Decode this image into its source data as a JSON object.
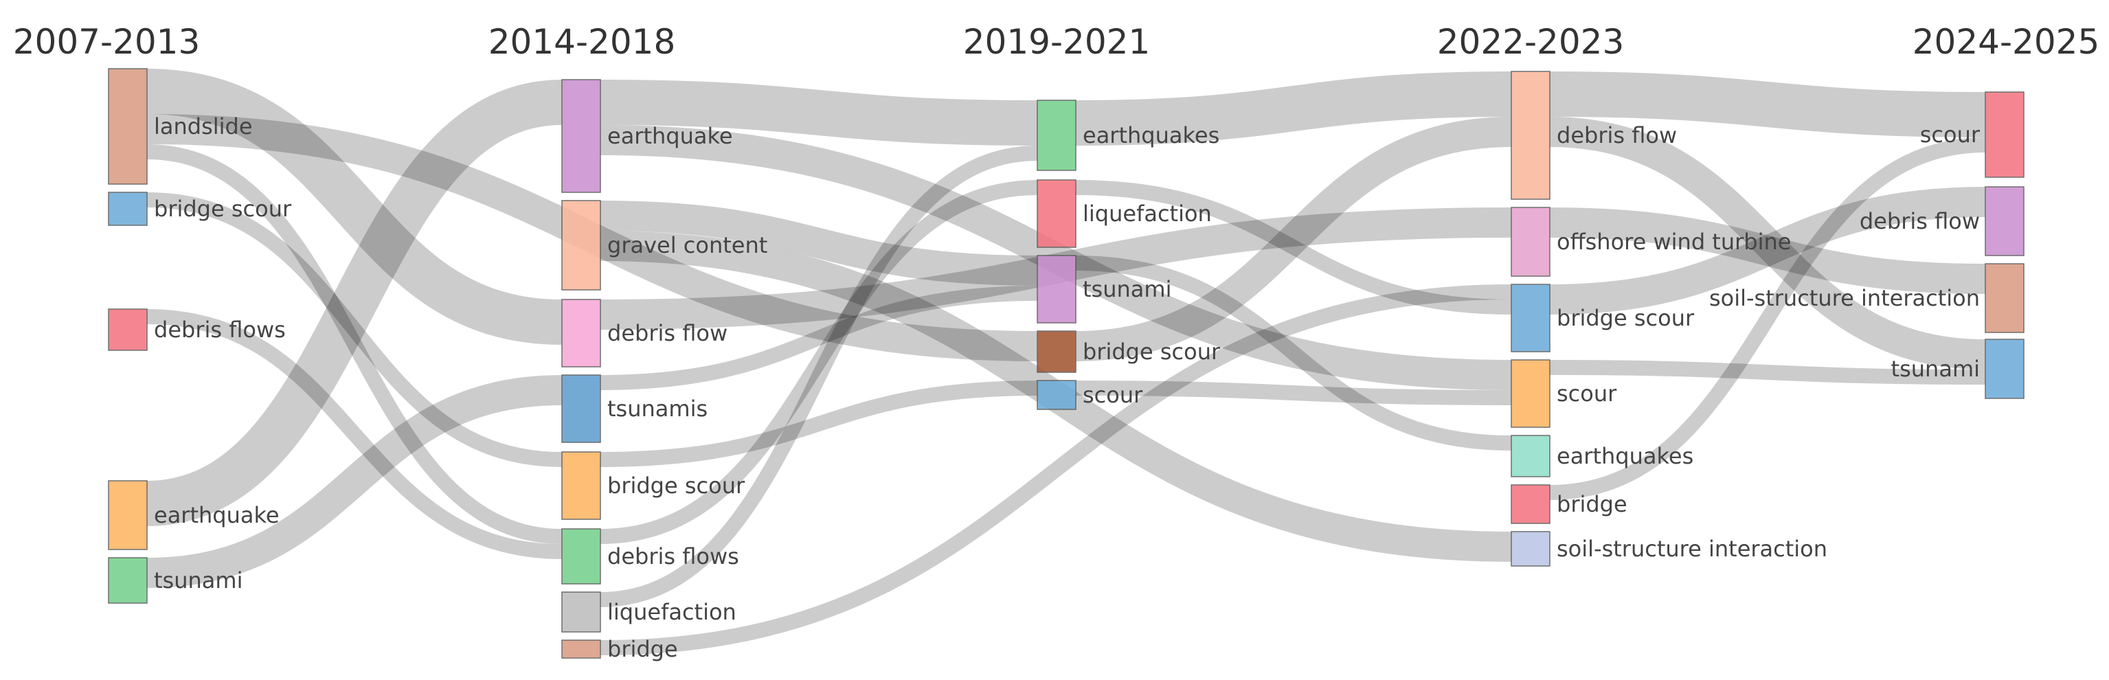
{
  "periods": [
    {
      "id": "p1",
      "label": "2007-2013"
    },
    {
      "id": "p2",
      "label": "2014-2018"
    },
    {
      "id": "p3",
      "label": "2019-2021"
    },
    {
      "id": "p4",
      "label": "2022-2023"
    },
    {
      "id": "p5",
      "label": "2024-2025"
    }
  ],
  "nodes": [
    {
      "id": "p1_landslide",
      "period": "p1",
      "label": "landslide",
      "color": "#d99a80"
    },
    {
      "id": "p1_bridge_scour",
      "period": "p1",
      "label": "bridge scour",
      "color": "#6aaad8"
    },
    {
      "id": "p1_debris_flows",
      "period": "p1",
      "label": "debris flows",
      "color": "#f4717e"
    },
    {
      "id": "p1_earthquake",
      "period": "p1",
      "label": "earthquake",
      "color": "#fdb35e"
    },
    {
      "id": "p1_tsunami",
      "period": "p1",
      "label": "tsunami",
      "color": "#71d08a"
    },
    {
      "id": "p2_earthquake",
      "period": "p2",
      "label": "earthquake",
      "color": "#c98ecf"
    },
    {
      "id": "p2_gravel_content",
      "period": "p2",
      "label": "gravel content",
      "color": "#fbb79a"
    },
    {
      "id": "p2_debris_flow",
      "period": "p2",
      "label": "debris flow",
      "color": "#f7a6d6"
    },
    {
      "id": "p2_tsunamis",
      "period": "p2",
      "label": "tsunamis",
      "color": "#5b9ccd"
    },
    {
      "id": "p2_bridge_scour",
      "period": "p2",
      "label": "bridge scour",
      "color": "#fdb35e"
    },
    {
      "id": "p2_debris_flows",
      "period": "p2",
      "label": "debris flows",
      "color": "#71d08a"
    },
    {
      "id": "p2_liquefaction",
      "period": "p2",
      "label": "liquefaction",
      "color": "#bbbbbb"
    },
    {
      "id": "p2_bridge",
      "period": "p2",
      "label": "bridge",
      "color": "#d99a80"
    },
    {
      "id": "p3_earthquakes",
      "period": "p3",
      "label": "earthquakes",
      "color": "#71d08a"
    },
    {
      "id": "p3_liquefaction",
      "period": "p3",
      "label": "liquefaction",
      "color": "#f4717e"
    },
    {
      "id": "p3_tsunami",
      "period": "p3",
      "label": "tsunami",
      "color": "#c98ecf"
    },
    {
      "id": "p3_bridge_scour",
      "period": "p3",
      "label": "bridge scour",
      "color": "#a0522d"
    },
    {
      "id": "p3_scour",
      "period": "p3",
      "label": "scour",
      "color": "#6aaad8"
    },
    {
      "id": "p4_debris_flow",
      "period": "p4",
      "label": "debris flow",
      "color": "#fbb79a"
    },
    {
      "id": "p4_offshore_wind_turbine",
      "period": "p4",
      "label": "offshore wind turbine",
      "color": "#e6a0cc"
    },
    {
      "id": "p4_bridge_scour",
      "period": "p4",
      "label": "bridge scour",
      "color": "#6aaad8"
    },
    {
      "id": "p4_scour",
      "period": "p4",
      "label": "scour",
      "color": "#fdb35e"
    },
    {
      "id": "p4_earthquakes",
      "period": "p4",
      "label": "earthquakes",
      "color": "#8fddc8"
    },
    {
      "id": "p4_bridge",
      "period": "p4",
      "label": "bridge",
      "color": "#f4717e"
    },
    {
      "id": "p4_soil_structure_interaction",
      "period": "p4",
      "label": "soil-structure interaction",
      "color": "#b9c4e6"
    },
    {
      "id": "p5_scour",
      "period": "p5",
      "label": "scour",
      "color": "#f4717e"
    },
    {
      "id": "p5_debris_flow",
      "period": "p5",
      "label": "debris flow",
      "color": "#c98ecf"
    },
    {
      "id": "p5_soil_structure_interaction",
      "period": "p5",
      "label": "soil-structure interaction",
      "color": "#d99a80"
    },
    {
      "id": "p5_tsunami",
      "period": "p5",
      "label": "tsunami",
      "color": "#6aaad8"
    }
  ],
  "links": [
    {
      "source": "p1_landslide",
      "target": "p2_debris_flow",
      "value": 3
    },
    {
      "source": "p1_landslide",
      "target": "p3_bridge_scour",
      "value": 2
    },
    {
      "source": "p1_landslide",
      "target": "p2_debris_flows",
      "value": 1
    },
    {
      "source": "p1_bridge_scour",
      "target": "p2_bridge_scour",
      "value": 1
    },
    {
      "source": "p1_debris_flows",
      "target": "p2_debris_flows",
      "value": 1
    },
    {
      "source": "p1_earthquake",
      "target": "p2_earthquake",
      "value": 3
    },
    {
      "source": "p1_tsunami",
      "target": "p2_tsunamis",
      "value": 2
    },
    {
      "source": "p2_earthquake",
      "target": "p3_earthquakes",
      "value": 3
    },
    {
      "source": "p2_earthquake",
      "target": "p4_scour",
      "value": 2
    },
    {
      "source": "p2_gravel_content",
      "target": "p3_tsunami",
      "value": 2
    },
    {
      "source": "p2_gravel_content",
      "target": "p4_soil_structure_interaction",
      "value": 2
    },
    {
      "source": "p2_debris_flow",
      "target": "p4_offshore_wind_turbine",
      "value": 2
    },
    {
      "source": "p2_tsunamis",
      "target": "p3_tsunami",
      "value": 1
    },
    {
      "source": "p2_bridge_scour",
      "target": "p3_scour",
      "value": 1
    },
    {
      "source": "p2_debris_flows",
      "target": "p3_liquefaction",
      "value": 1
    },
    {
      "source": "p2_liquefaction",
      "target": "p3_earthquakes",
      "value": 1
    },
    {
      "source": "p2_bridge",
      "target": "p4_bridge_scour",
      "value": 1
    },
    {
      "source": "p3_earthquakes",
      "target": "p4_debris_flow",
      "value": 3
    },
    {
      "source": "p3_liquefaction",
      "target": "p4_bridge_scour",
      "value": 1
    },
    {
      "source": "p3_tsunami",
      "target": "p4_earthquakes",
      "value": 1
    },
    {
      "source": "p3_bridge_scour",
      "target": "p4_debris_flow",
      "value": 2
    },
    {
      "source": "p3_scour",
      "target": "p4_scour",
      "value": 1
    },
    {
      "source": "p4_debris_flow",
      "target": "p5_scour",
      "value": 3
    },
    {
      "source": "p4_debris_flow",
      "target": "p5_tsunami",
      "value": 2
    },
    {
      "source": "p4_offshore_wind_turbine",
      "target": "p5_soil_structure_interaction",
      "value": 2
    },
    {
      "source": "p4_bridge_scour",
      "target": "p5_debris_flow",
      "value": 2
    },
    {
      "source": "p4_scour",
      "target": "p5_tsunami",
      "value": 1
    },
    {
      "source": "p4_bridge",
      "target": "p5_scour",
      "value": 1
    }
  ]
}
